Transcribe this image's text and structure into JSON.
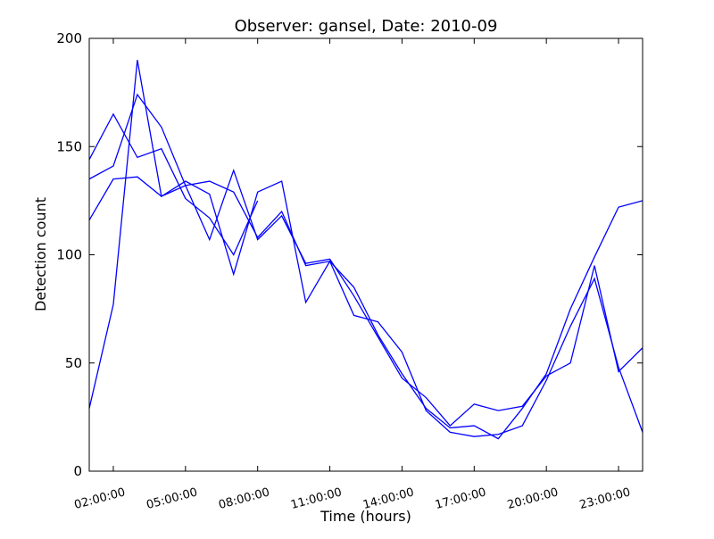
{
  "chart_data": {
    "type": "line",
    "title": "Observer: gansel, Date: 2010-09",
    "xlabel": "Time (hours)",
    "ylabel": "Detection count",
    "xlim": [
      "01:00:00",
      "24:00:00"
    ],
    "ylim": [
      0,
      200
    ],
    "x_tick_labels": [
      "02:00:00",
      "05:00:00",
      "08:00:00",
      "11:00:00",
      "14:00:00",
      "17:00:00",
      "20:00:00",
      "23:00:00"
    ],
    "y_ticks": [
      0,
      50,
      100,
      150,
      200
    ],
    "grid": false,
    "line_color": "#0000ff",
    "series": [
      {
        "x": [
          "01:00:00",
          "02:00:00",
          "03:00:00",
          "04:00:00",
          "05:00:00",
          "06:00:00",
          "07:00:00",
          "08:00:00"
        ],
        "values": [
          144,
          165,
          145,
          149,
          126,
          117,
          100,
          125
        ]
      },
      {
        "x": [
          "01:00:00",
          "02:00:00",
          "03:00:00",
          "04:00:00",
          "05:00:00",
          "06:00:00",
          "07:00:00",
          "08:00:00",
          "09:00:00",
          "10:00:00",
          "11:00:00",
          "12:00:00",
          "13:00:00",
          "14:00:00",
          "15:00:00",
          "16:00:00",
          "17:00:00",
          "18:00:00",
          "19:00:00",
          "20:00:00",
          "21:00:00",
          "22:00:00",
          "23:00:00",
          "24:00:00"
        ],
        "values": [
          135,
          141,
          174,
          159,
          132,
          107,
          139,
          107,
          118,
          96,
          98,
          81,
          62,
          43,
          34,
          21,
          31,
          28,
          30,
          44,
          50,
          95,
          46,
          57
        ]
      },
      {
        "x": [
          "01:00:00",
          "02:00:00",
          "03:00:00",
          "04:00:00",
          "05:00:00",
          "06:00:00",
          "07:00:00",
          "08:00:00",
          "09:00:00",
          "10:00:00",
          "11:00:00",
          "12:00:00",
          "13:00:00",
          "14:00:00",
          "15:00:00",
          "16:00:00",
          "17:00:00",
          "18:00:00",
          "19:00:00",
          "20:00:00",
          "21:00:00",
          "22:00:00",
          "23:00:00",
          "24:00:00"
        ],
        "values": [
          116,
          135,
          136,
          127,
          132,
          134,
          129,
          108,
          120,
          95,
          97,
          85,
          63,
          45,
          29,
          20,
          21,
          15,
          29,
          45,
          75,
          99,
          122,
          125
        ]
      },
      {
        "x": [
          "01:00:00",
          "02:00:00",
          "03:00:00",
          "04:00:00",
          "05:00:00",
          "06:00:00",
          "07:00:00",
          "08:00:00",
          "09:00:00",
          "10:00:00",
          "11:00:00",
          "12:00:00",
          "13:00:00",
          "14:00:00",
          "15:00:00",
          "16:00:00",
          "17:00:00",
          "18:00:00",
          "19:00:00",
          "20:00:00",
          "21:00:00",
          "22:00:00",
          "23:00:00",
          "24:00:00"
        ],
        "values": [
          29,
          77,
          190,
          127,
          134,
          128,
          91,
          129,
          134,
          78,
          97,
          72,
          69,
          55,
          28,
          18,
          16,
          17,
          21,
          42,
          67,
          89,
          48,
          18
        ]
      }
    ]
  }
}
